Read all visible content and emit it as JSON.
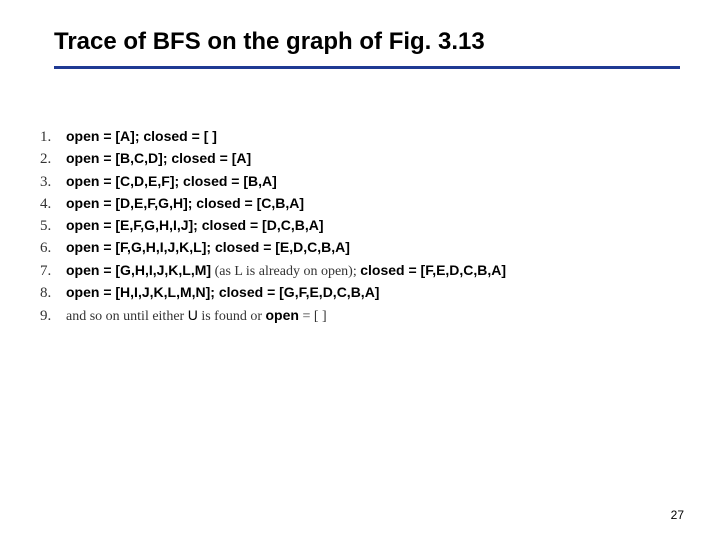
{
  "title": "Trace of BFS on the graph of Fig. 3.13",
  "page_number": "27",
  "colors": {
    "rule": "#1f3a93",
    "text": "#000000",
    "serif_text": "#333333",
    "background": "#ffffff"
  },
  "typography": {
    "title_fontsize": 24,
    "body_fontsize": 14,
    "num_fontsize": 15,
    "pagenum_fontsize": 12
  },
  "lines": [
    {
      "n": "1.",
      "bold1": "open = [A]; closed = [ ]",
      "note": "",
      "bold2": ""
    },
    {
      "n": "2.",
      "bold1": "open = [B,C,D]; closed = [A]",
      "note": "",
      "bold2": ""
    },
    {
      "n": "3.",
      "bold1": "open = [C,D,E,F]; closed = [B,A]",
      "note": "",
      "bold2": ""
    },
    {
      "n": "4.",
      "bold1": "open = [D,E,F,G,H]; closed = [C,B,A]",
      "note": "",
      "bold2": ""
    },
    {
      "n": "5.",
      "bold1": "open = [E,F,G,H,I,J]; closed = [D,C,B,A]",
      "note": "",
      "bold2": ""
    },
    {
      "n": "6.",
      "bold1": "open = [F,G,H,I,J,K,L]; closed = [E,D,C,B,A]",
      "note": "",
      "bold2": ""
    },
    {
      "n": "7.",
      "bold1": "open = [G,H,I,J,K,L,M]",
      "note": " (as L is already on open); ",
      "bold2": "closed = [F,E,D,C,B,A]"
    },
    {
      "n": "8.",
      "bold1": "open = [H,I,J,K,L,M,N]; closed = [G,F,E,D,C,B,A]",
      "note": "",
      "bold2": ""
    }
  ],
  "final": {
    "n": "9.",
    "pre": "and so on until either ",
    "mid_bold": "U",
    "mid": " is found or ",
    "open_bold": "open",
    "tail": " = [ ]"
  }
}
